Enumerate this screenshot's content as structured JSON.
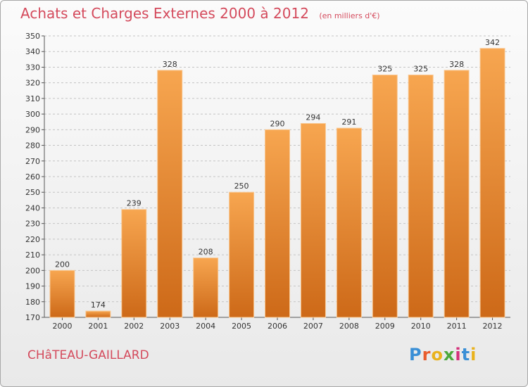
{
  "title": "Achats et Charges Externes 2000 à 2012",
  "subtitle": "(en milliers d'€)",
  "city": "CHâTEAU-GAILLARD",
  "brand": "Proxiti",
  "colors": {
    "bar_light": "#f6a24e",
    "bar_dark": "#cf6a1a",
    "title": "#d44a5c",
    "grid": "#bdbdbd"
  },
  "chart_data": {
    "type": "bar",
    "title": "Achats et Charges Externes 2000 à 2012",
    "subtitle": "(en milliers d'€)",
    "categories": [
      "2000",
      "2001",
      "2002",
      "2003",
      "2004",
      "2005",
      "2006",
      "2007",
      "2008",
      "2009",
      "2010",
      "2011",
      "2012"
    ],
    "values": [
      200,
      174,
      239,
      328,
      208,
      250,
      290,
      294,
      291,
      325,
      325,
      328,
      342
    ],
    "ylim": [
      170,
      350
    ],
    "yticks": [
      170,
      180,
      190,
      200,
      210,
      220,
      230,
      240,
      250,
      260,
      270,
      280,
      290,
      300,
      310,
      320,
      330,
      340,
      350
    ],
    "xlabel": "",
    "ylabel": "",
    "grid": "horizontal dashed"
  }
}
